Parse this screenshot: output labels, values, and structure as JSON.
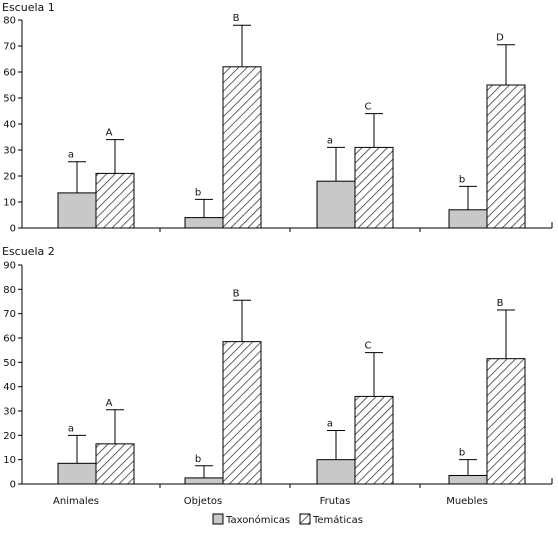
{
  "chart_data": [
    {
      "type": "bar",
      "title": "Escuela 1",
      "categories": [
        "Animales",
        "Objetos",
        "Frutas",
        "Muebles"
      ],
      "ylim": [
        0,
        80
      ],
      "yticks": [
        "0",
        "10",
        "20",
        "30",
        "40",
        "50",
        "60",
        "70",
        "80"
      ],
      "series": [
        {
          "name": "Taxonómicas",
          "color": "#c8c8c8",
          "pattern": "solid",
          "values": [
            13.5,
            4,
            18,
            7
          ],
          "errors": [
            12,
            7,
            13,
            9
          ],
          "labels": [
            "a",
            "b",
            "a",
            "b"
          ]
        },
        {
          "name": "Temáticas",
          "color": "#ffffff",
          "pattern": "hatched",
          "values": [
            21,
            62,
            31,
            55
          ],
          "errors": [
            13,
            16,
            13,
            15.5
          ],
          "labels": [
            "A",
            "B",
            "C",
            "D"
          ]
        }
      ]
    },
    {
      "type": "bar",
      "title": "Escuela 2",
      "categories": [
        "Animales",
        "Objetos",
        "Frutas",
        "Muebles"
      ],
      "ylim": [
        0,
        90
      ],
      "yticks": [
        "0",
        "10",
        "20",
        "30",
        "40",
        "50",
        "60",
        "70",
        "80",
        "90"
      ],
      "series": [
        {
          "name": "Taxonómicas",
          "color": "#c8c8c8",
          "pattern": "solid",
          "values": [
            8.5,
            2.5,
            10,
            3.5
          ],
          "errors": [
            11.5,
            5,
            12,
            6.5
          ],
          "labels": [
            "a",
            "b",
            "a",
            "b"
          ]
        },
        {
          "name": "Temáticas",
          "color": "#ffffff",
          "pattern": "hatched",
          "values": [
            16.5,
            58.5,
            36,
            51.5
          ],
          "errors": [
            14,
            17,
            18,
            20
          ],
          "labels": [
            "A",
            "B",
            "C",
            "B"
          ]
        }
      ]
    }
  ],
  "legend": {
    "position": "bottom-center",
    "items": [
      {
        "label": "Taxonómicas",
        "color": "#c8c8c8",
        "pattern": "solid"
      },
      {
        "label": "Temáticas",
        "color": "#ffffff",
        "pattern": "hatched"
      }
    ]
  }
}
